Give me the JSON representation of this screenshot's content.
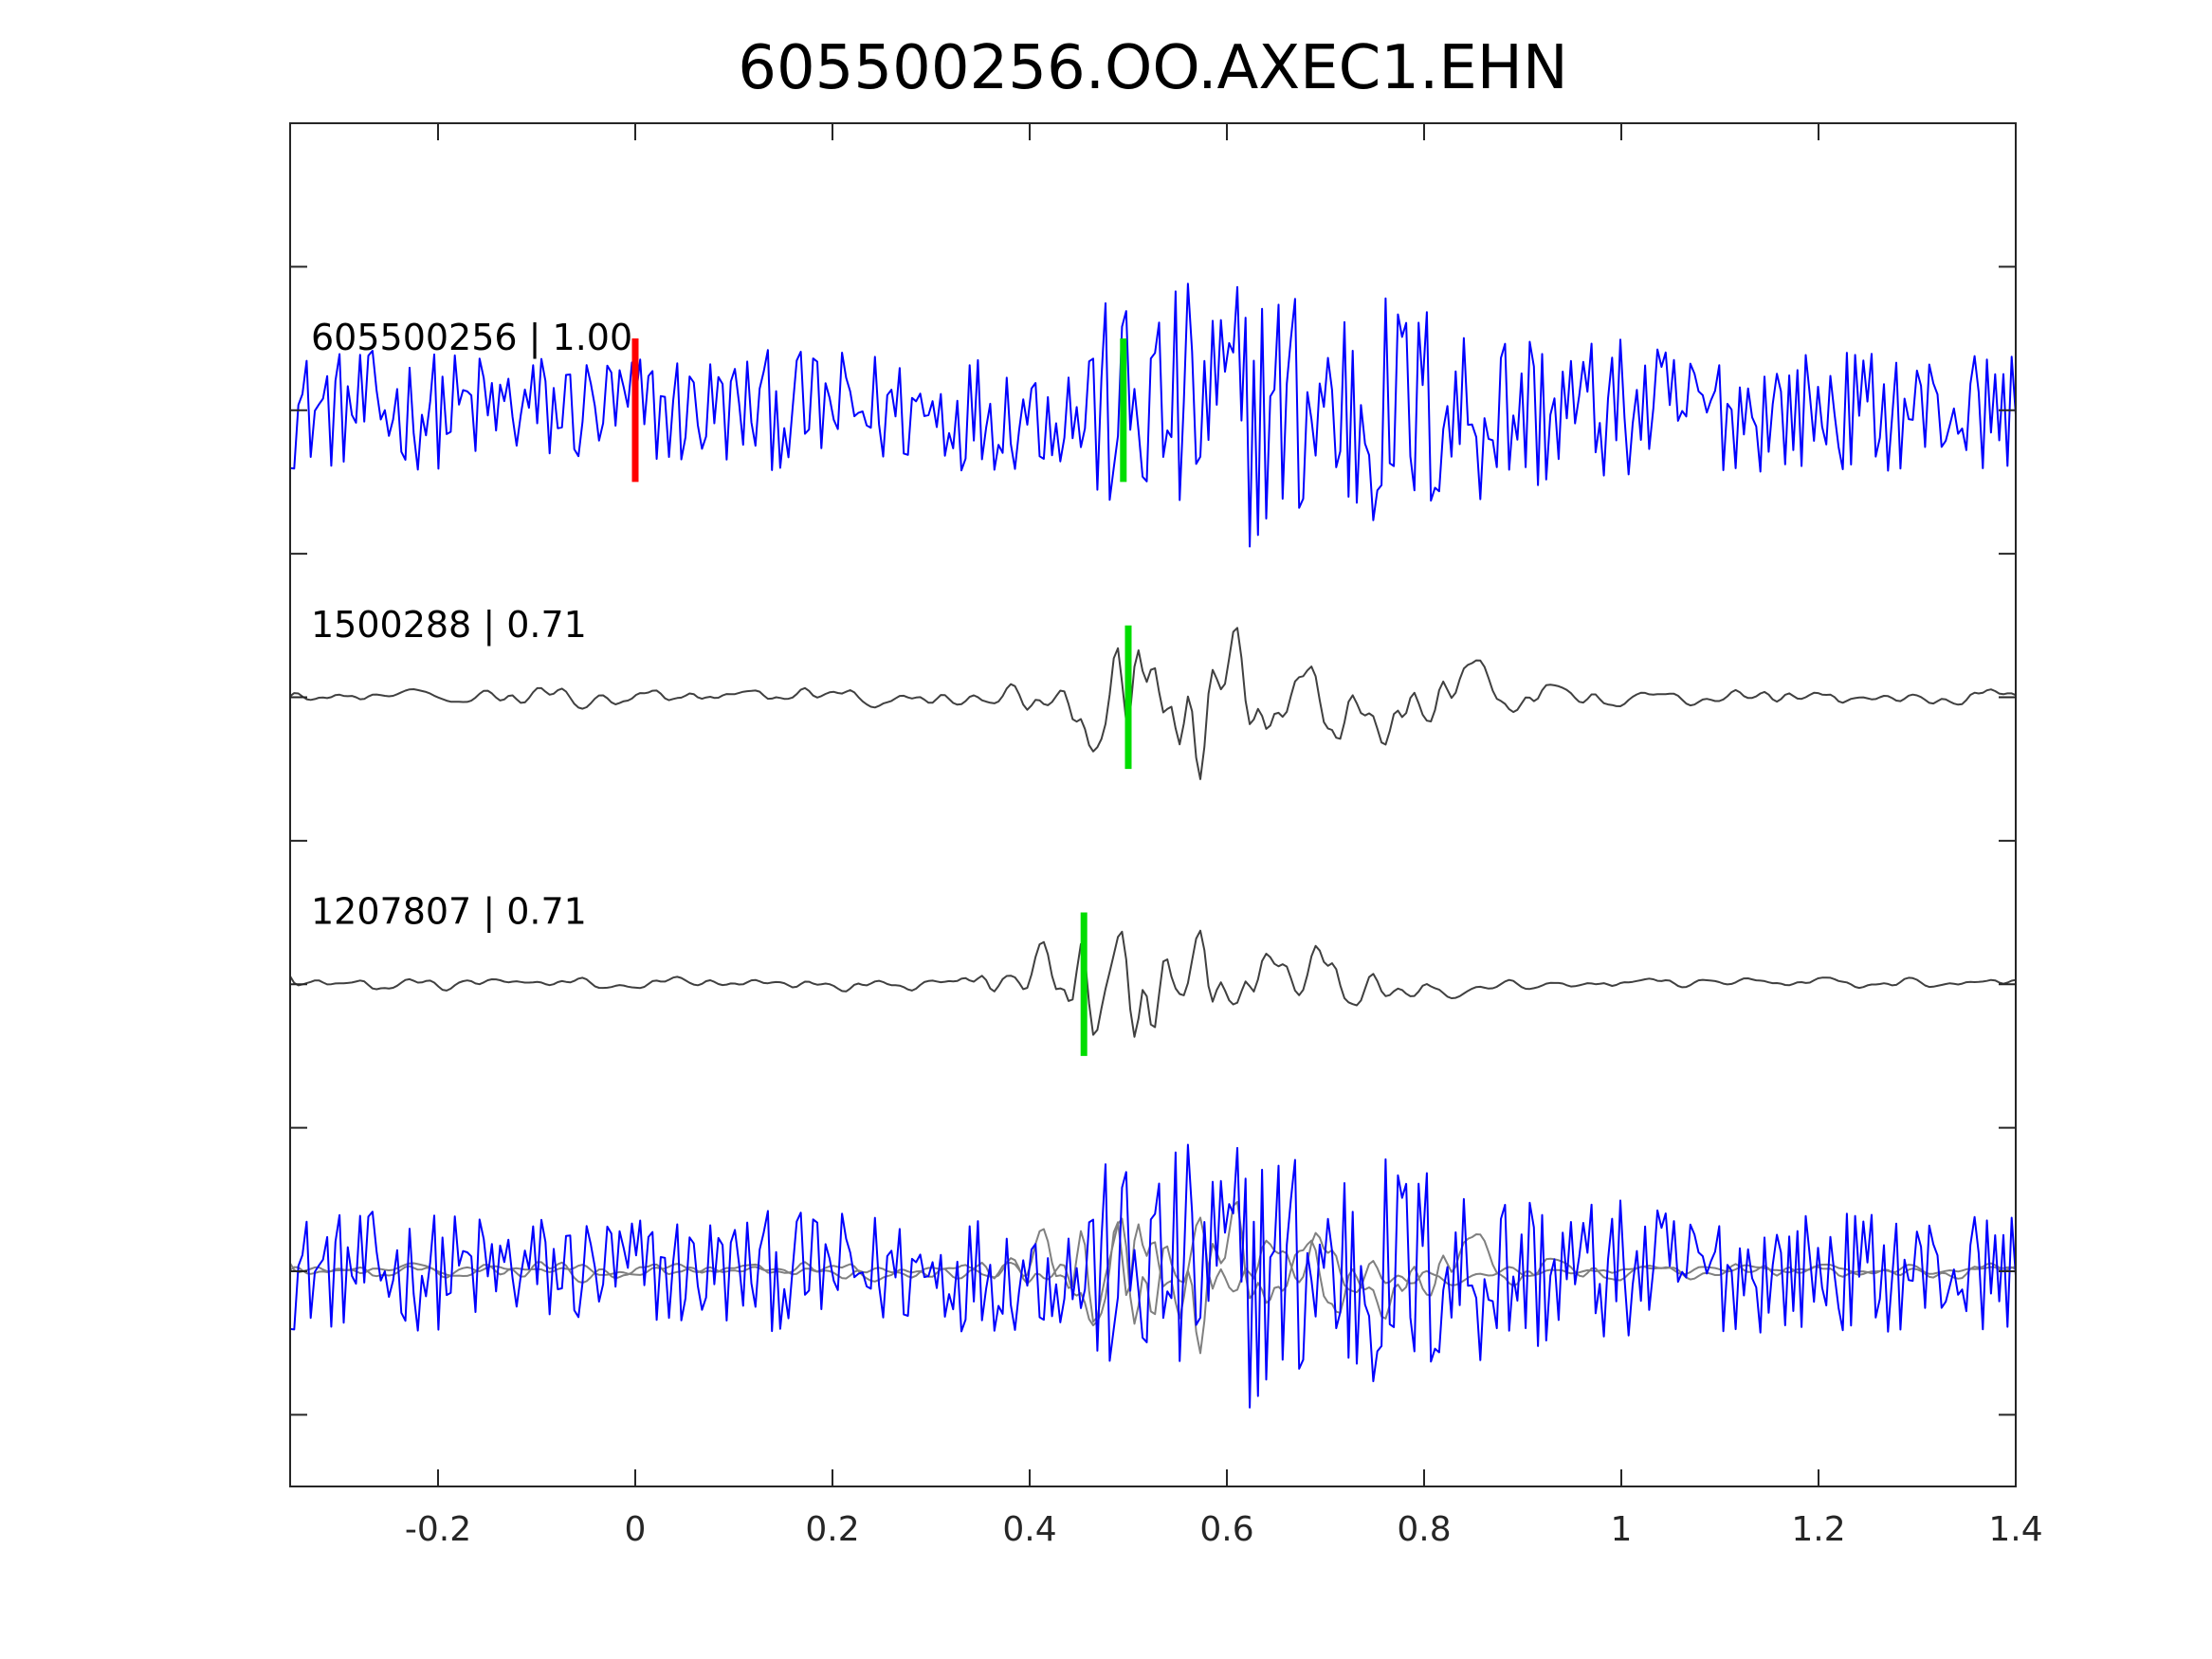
{
  "chart_data": {
    "type": "line",
    "title": "605500256.OO.AXEC1.EHN",
    "xlabel": "",
    "ylabel": "",
    "xlim": [
      -0.35,
      1.4
    ],
    "xticks": [
      -0.2,
      0,
      0.2,
      0.4,
      0.6,
      0.8,
      1,
      1.2,
      1.4
    ],
    "xtick_labels": [
      "-0.2",
      "0",
      "0.2",
      "0.4",
      "0.6",
      "0.8",
      "1",
      "1.2",
      "1.4"
    ],
    "ylim": [
      0.5,
      10
    ],
    "yticks": [
      1,
      2,
      3,
      4,
      5,
      6,
      7,
      8,
      9
    ],
    "grid": false,
    "legend": "none",
    "colors": {
      "main": "#0000ff",
      "reference": "#404040",
      "overlay_reference": "#808080",
      "main_pick": "#ff0000",
      "reference_pick": "#00dd00"
    },
    "traces": [
      {
        "label": "605500256 | 1.00",
        "color": "blue",
        "baseline": 8,
        "pick_time": 0.0,
        "pick_color": "red",
        "aligned_pick": 0.495,
        "aligned_pick_color": "green"
      },
      {
        "label": "1500288 | 0.71",
        "color": "gray",
        "baseline": 6,
        "pick_time": 0.5,
        "pick_color": "green"
      },
      {
        "label": "1207807 | 0.71",
        "color": "gray",
        "baseline": 4,
        "pick_time": 0.455,
        "pick_color": "green"
      },
      {
        "label": "",
        "color": "overlay",
        "baseline": 2,
        "note_series": [
          "605500256",
          "1500288",
          "1207807"
        ]
      }
    ],
    "overlay_baseline": 2
  }
}
